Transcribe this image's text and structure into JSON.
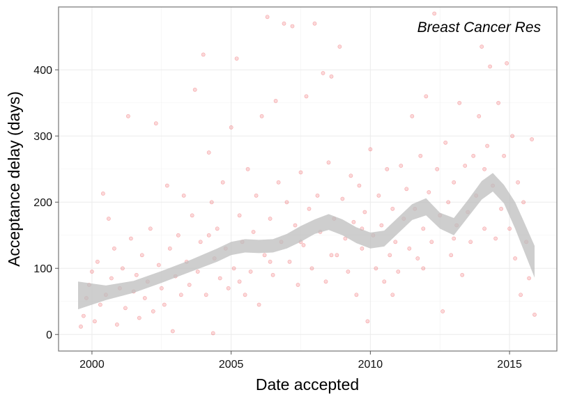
{
  "chart_data": {
    "type": "scatter",
    "title": "",
    "annotation": "Breast Cancer Res",
    "xlabel": "Date accepted",
    "ylabel": "Acceptance delay (days)",
    "xlim": [
      1998.8,
      2016.7
    ],
    "ylim": [
      -25,
      495
    ],
    "x_ticks": [
      2000,
      2005,
      2010,
      2015
    ],
    "y_ticks": [
      0,
      100,
      200,
      300,
      400
    ],
    "grid": true,
    "point_color": "#e8262b",
    "band_color": "#bdbdbd",
    "smooth": {
      "x": [
        1999.5,
        2000.5,
        2001.5,
        2002.5,
        2003.5,
        2004.5,
        2005.0,
        2005.5,
        2006.0,
        2006.5,
        2007.0,
        2007.5,
        2008.0,
        2008.5,
        2009.0,
        2009.5,
        2010.0,
        2010.5,
        2011.0,
        2011.5,
        2012.0,
        2012.5,
        2013.0,
        2013.5,
        2014.0,
        2014.4,
        2014.8,
        2015.2,
        2015.5,
        2015.9
      ],
      "y": [
        58,
        63,
        72,
        87,
        103,
        120,
        130,
        134,
        133,
        134,
        141,
        152,
        163,
        170,
        162,
        150,
        142,
        145,
        165,
        185,
        193,
        172,
        163,
        190,
        218,
        230,
        212,
        180,
        150,
        110
      ],
      "lower": [
        38,
        52,
        63,
        78,
        94,
        110,
        120,
        124,
        123,
        124,
        130,
        140,
        152,
        158,
        150,
        138,
        130,
        133,
        153,
        173,
        180,
        160,
        150,
        177,
        204,
        216,
        198,
        160,
        128,
        86
      ],
      "upper": [
        80,
        74,
        81,
        96,
        112,
        130,
        140,
        144,
        143,
        144,
        152,
        164,
        174,
        182,
        174,
        162,
        154,
        157,
        177,
        197,
        206,
        184,
        176,
        203,
        232,
        244,
        226,
        200,
        172,
        134
      ]
    },
    "points": [
      [
        1999.6,
        12
      ],
      [
        1999.7,
        28
      ],
      [
        1999.8,
        55
      ],
      [
        1999.9,
        75
      ],
      [
        2000.0,
        95
      ],
      [
        2000.1,
        20
      ],
      [
        2000.2,
        110
      ],
      [
        2000.3,
        45
      ],
      [
        2000.4,
        213
      ],
      [
        2000.5,
        60
      ],
      [
        2000.6,
        175
      ],
      [
        2000.7,
        85
      ],
      [
        2000.8,
        130
      ],
      [
        2000.9,
        15
      ],
      [
        2001.0,
        70
      ],
      [
        2001.1,
        100
      ],
      [
        2001.2,
        40
      ],
      [
        2001.3,
        330
      ],
      [
        2001.4,
        145
      ],
      [
        2001.5,
        65
      ],
      [
        2001.6,
        90
      ],
      [
        2001.7,
        25
      ],
      [
        2001.8,
        120
      ],
      [
        2001.9,
        55
      ],
      [
        2002.0,
        80
      ],
      [
        2002.1,
        160
      ],
      [
        2002.2,
        35
      ],
      [
        2002.3,
        319
      ],
      [
        2002.4,
        105
      ],
      [
        2002.5,
        70
      ],
      [
        2002.6,
        45
      ],
      [
        2002.7,
        225
      ],
      [
        2002.8,
        130
      ],
      [
        2002.9,
        5
      ],
      [
        2003.0,
        88
      ],
      [
        2003.1,
        150
      ],
      [
        2003.2,
        60
      ],
      [
        2003.3,
        210
      ],
      [
        2003.4,
        110
      ],
      [
        2003.5,
        75
      ],
      [
        2003.6,
        180
      ],
      [
        2003.7,
        370
      ],
      [
        2003.8,
        95
      ],
      [
        2003.9,
        140
      ],
      [
        2004.0,
        423
      ],
      [
        2004.1,
        60
      ],
      [
        2004.2,
        275
      ],
      [
        2004.3,
        200
      ],
      [
        2004.35,
        2
      ],
      [
        2004.4,
        115
      ],
      [
        2004.5,
        160
      ],
      [
        2004.6,
        85
      ],
      [
        2004.7,
        230
      ],
      [
        2004.8,
        130
      ],
      [
        2004.9,
        70
      ],
      [
        2005.0,
        313
      ],
      [
        2005.1,
        100
      ],
      [
        2005.2,
        417
      ],
      [
        2005.3,
        180
      ],
      [
        2005.4,
        140
      ],
      [
        2005.5,
        60
      ],
      [
        2005.6,
        250
      ],
      [
        2005.7,
        95
      ],
      [
        2005.8,
        155
      ],
      [
        2005.9,
        210
      ],
      [
        2006.0,
        45
      ],
      [
        2006.1,
        330
      ],
      [
        2006.2,
        120
      ],
      [
        2006.3,
        480
      ],
      [
        2006.4,
        175
      ],
      [
        2006.5,
        90
      ],
      [
        2006.6,
        353
      ],
      [
        2006.7,
        230
      ],
      [
        2006.8,
        140
      ],
      [
        2006.9,
        470
      ],
      [
        2007.0,
        200
      ],
      [
        2007.1,
        110
      ],
      [
        2007.2,
        466
      ],
      [
        2007.3,
        165
      ],
      [
        2007.4,
        75
      ],
      [
        2007.5,
        245
      ],
      [
        2007.6,
        135
      ],
      [
        2007.7,
        360
      ],
      [
        2007.8,
        190
      ],
      [
        2007.9,
        100
      ],
      [
        2008.0,
        470
      ],
      [
        2008.1,
        210
      ],
      [
        2008.2,
        155
      ],
      [
        2008.3,
        395
      ],
      [
        2008.4,
        80
      ],
      [
        2008.5,
        260
      ],
      [
        2008.6,
        390
      ],
      [
        2008.7,
        175
      ],
      [
        2008.8,
        120
      ],
      [
        2008.9,
        435
      ],
      [
        2009.0,
        205
      ],
      [
        2009.1,
        145
      ],
      [
        2009.2,
        95
      ],
      [
        2009.3,
        240
      ],
      [
        2009.4,
        170
      ],
      [
        2009.5,
        60
      ],
      [
        2009.6,
        225
      ],
      [
        2009.7,
        130
      ],
      [
        2009.8,
        185
      ],
      [
        2009.9,
        20
      ],
      [
        2010.0,
        280
      ],
      [
        2010.1,
        150
      ],
      [
        2010.2,
        100
      ],
      [
        2010.3,
        210
      ],
      [
        2010.4,
        165
      ],
      [
        2010.5,
        80
      ],
      [
        2010.6,
        250
      ],
      [
        2010.7,
        120
      ],
      [
        2010.8,
        190
      ],
      [
        2010.9,
        140
      ],
      [
        2011.0,
        95
      ],
      [
        2011.1,
        255
      ],
      [
        2011.2,
        175
      ],
      [
        2011.3,
        220
      ],
      [
        2011.4,
        130
      ],
      [
        2011.5,
        330
      ],
      [
        2011.6,
        190
      ],
      [
        2011.7,
        115
      ],
      [
        2011.8,
        270
      ],
      [
        2011.9,
        160
      ],
      [
        2012.0,
        360
      ],
      [
        2012.1,
        215
      ],
      [
        2012.2,
        140
      ],
      [
        2012.3,
        485
      ],
      [
        2012.4,
        250
      ],
      [
        2012.5,
        180
      ],
      [
        2012.6,
        35
      ],
      [
        2012.7,
        290
      ],
      [
        2012.8,
        200
      ],
      [
        2012.9,
        120
      ],
      [
        2013.0,
        230
      ],
      [
        2013.1,
        165
      ],
      [
        2013.2,
        350
      ],
      [
        2013.3,
        90
      ],
      [
        2013.4,
        255
      ],
      [
        2013.5,
        185
      ],
      [
        2013.6,
        140
      ],
      [
        2013.7,
        270
      ],
      [
        2013.8,
        210
      ],
      [
        2013.9,
        330
      ],
      [
        2014.0,
        435
      ],
      [
        2014.1,
        160
      ],
      [
        2014.2,
        285
      ],
      [
        2014.3,
        405
      ],
      [
        2014.4,
        225
      ],
      [
        2014.5,
        145
      ],
      [
        2014.6,
        350
      ],
      [
        2014.7,
        190
      ],
      [
        2014.8,
        270
      ],
      [
        2014.9,
        410
      ],
      [
        2015.0,
        160
      ],
      [
        2015.1,
        300
      ],
      [
        2015.2,
        115
      ],
      [
        2015.3,
        230
      ],
      [
        2015.4,
        60
      ],
      [
        2015.5,
        200
      ],
      [
        2015.6,
        140
      ],
      [
        2015.7,
        85
      ],
      [
        2015.8,
        295
      ],
      [
        2015.9,
        30
      ],
      [
        2004.2,
        150
      ],
      [
        2005.3,
        80
      ],
      [
        2006.4,
        110
      ],
      [
        2007.5,
        140
      ],
      [
        2008.6,
        120
      ],
      [
        2009.7,
        160
      ],
      [
        2010.8,
        60
      ],
      [
        2011.9,
        100
      ],
      [
        2013.0,
        145
      ],
      [
        2014.1,
        250
      ]
    ]
  }
}
